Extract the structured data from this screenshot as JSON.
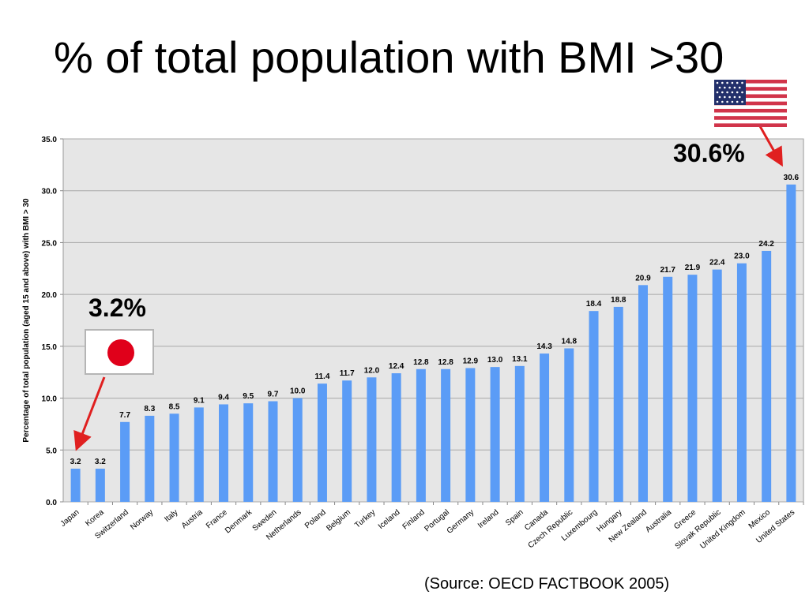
{
  "slide": {
    "title": "% of total population with BMI >30",
    "source": "(Source: OECD FACTBOOK 2005)"
  },
  "callouts": {
    "japan": "3.2%",
    "usa": "30.6%",
    "arrow_color": "#e02020",
    "japan_flag_icon": "japan-flag-icon",
    "usa_flag_icon": "usa-flag-icon"
  },
  "chart_data": {
    "type": "bar",
    "title": "",
    "xlabel": "",
    "ylabel": "Percentage of total population  (aged 15 and above) with BMI > 30",
    "ylim": [
      0,
      35
    ],
    "yticks": [
      "0.0",
      "5.0",
      "10.0",
      "15.0",
      "20.0",
      "25.0",
      "30.0",
      "35.0"
    ],
    "grid": true,
    "bar_color": "#5b9cf6",
    "plot_background": "#e6e6e6",
    "categories": [
      "Japan",
      "Korea",
      "Switzerland",
      "Norway",
      "Italy",
      "Austria",
      "France",
      "Denmark",
      "Sweden",
      "Netherlands",
      "Poland",
      "Belgium",
      "Turkey",
      "Iceland",
      "Finland",
      "Portugal",
      "Germany",
      "Ireland",
      "Spain",
      "Canada",
      "Czech Republic",
      "Luxembourg",
      "Hungary",
      "New Zealand",
      "Australia",
      "Greece",
      "Slovak Republic",
      "United Kingdom",
      "Mexico",
      "United States"
    ],
    "values": [
      3.2,
      3.2,
      7.7,
      8.3,
      8.5,
      9.1,
      9.4,
      9.5,
      9.7,
      10.0,
      11.4,
      11.7,
      12.0,
      12.4,
      12.8,
      12.8,
      12.9,
      13.0,
      13.1,
      14.3,
      14.8,
      18.4,
      18.8,
      20.9,
      21.7,
      21.9,
      22.4,
      23.0,
      24.2,
      30.6
    ],
    "data_labels": [
      "3.2",
      "3.2",
      "7.7",
      "8.3",
      "8.5",
      "9.1",
      "9.4",
      "9.5",
      "9.7",
      "10.0",
      "11.4",
      "11.7",
      "12.0",
      "12.4",
      "12.8",
      "12.8",
      "12.9",
      "13.0",
      "13.1",
      "14.3",
      "14.8",
      "18.4",
      "18.8",
      "20.9",
      "21.7",
      "21.9",
      "22.4",
      "23.0",
      "24.2",
      "30.6"
    ]
  }
}
